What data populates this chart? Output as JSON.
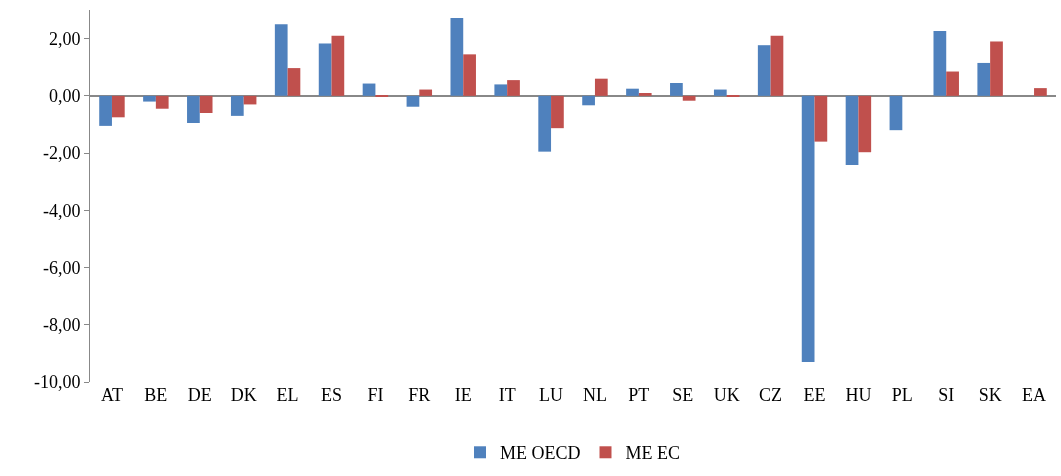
{
  "chart_data": {
    "type": "bar",
    "categories": [
      "AT",
      "BE",
      "DE",
      "DK",
      "EL",
      "ES",
      "FI",
      "FR",
      "IE",
      "IT",
      "LU",
      "NL",
      "PT",
      "SE",
      "UK",
      "CZ",
      "EE",
      "HU",
      "PL",
      "SI",
      "SK",
      "EA"
    ],
    "series": [
      {
        "name": "ME OECD",
        "color": "#4f81bd",
        "values": [
          -1.05,
          -0.2,
          -0.95,
          -0.7,
          2.5,
          1.83,
          0.43,
          -0.38,
          2.72,
          0.4,
          -1.95,
          -0.33,
          0.25,
          0.45,
          0.22,
          1.77,
          -9.3,
          -2.42,
          -1.2,
          2.27,
          1.15,
          0
        ]
      },
      {
        "name": "ME EC",
        "color": "#c0504d",
        "values": [
          -0.75,
          -0.45,
          -0.6,
          -0.3,
          0.97,
          2.1,
          -0.03,
          0.22,
          1.45,
          0.55,
          -1.13,
          0.6,
          0.1,
          -0.17,
          -0.03,
          2.1,
          -1.6,
          -1.97,
          0,
          0.85,
          1.9,
          0.27
        ]
      }
    ],
    "ylim": [
      -10,
      3
    ],
    "yticks": [
      {
        "value": -10,
        "label": "-10,00"
      },
      {
        "value": -8,
        "label": "-8,00"
      },
      {
        "value": -6,
        "label": "-6,00"
      },
      {
        "value": -4,
        "label": "-4,00"
      },
      {
        "value": -2,
        "label": "-2,00"
      },
      {
        "value": 0,
        "label": "0,00"
      },
      {
        "value": 2,
        "label": "2,00"
      }
    ],
    "legend": "bottom"
  }
}
